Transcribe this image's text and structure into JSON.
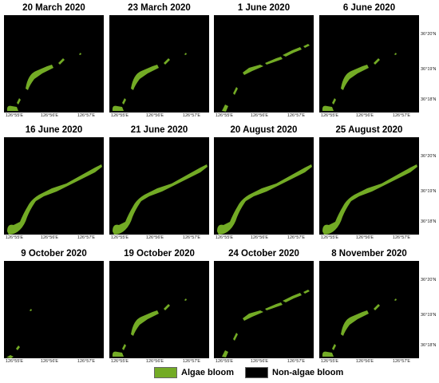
{
  "colors": {
    "algae": "#73ab25",
    "background": "#000000"
  },
  "x_axis_labels": [
    "126°55'E",
    "126°56'E",
    "126°57'E"
  ],
  "y_axis_labels": [
    "36°20'N",
    "36°19'N",
    "36°18'N"
  ],
  "panels": [
    {
      "title": "20 March 2020",
      "bloom": "sparse"
    },
    {
      "title": "23 March 2020",
      "bloom": "sparse"
    },
    {
      "title": "1 June 2020",
      "bloom": "moderate"
    },
    {
      "title": "6 June 2020",
      "bloom": "sparse"
    },
    {
      "title": "16 June 2020",
      "bloom": "dense"
    },
    {
      "title": "21 June 2020",
      "bloom": "dense"
    },
    {
      "title": "20 August 2020",
      "bloom": "dense"
    },
    {
      "title": "25 August 2020",
      "bloom": "dense"
    },
    {
      "title": "9 October 2020",
      "bloom": "minimal"
    },
    {
      "title": "19 October 2020",
      "bloom": "sparse"
    },
    {
      "title": "24 October 2020",
      "bloom": "moderate"
    },
    {
      "title": "8 November 2020",
      "bloom": "sparse"
    }
  ],
  "legend": {
    "algae_label": "Algae bloom",
    "non_algae_label": "Non-algae bloom"
  }
}
